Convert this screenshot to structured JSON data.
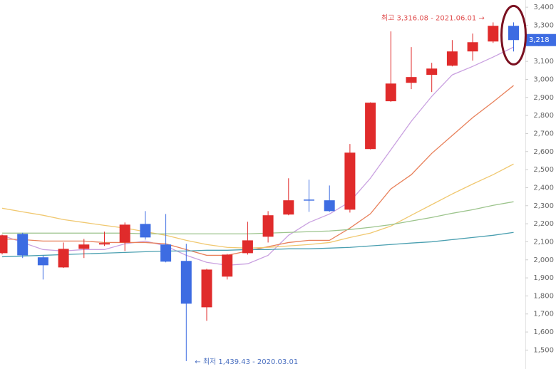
{
  "chart_data": {
    "type": "candlestick",
    "up_color": "#e02b2b",
    "down_color": "#3d6ce2",
    "open": [
      2037,
      2144,
      2014,
      1958,
      2061,
      2085,
      2096,
      2199,
      2085,
      1994,
      1737,
      1907,
      2037,
      2128,
      2251,
      2334,
      2330,
      2278,
      2614,
      2879,
      2981,
      3025,
      3076,
      3155,
      3210,
      3297
    ],
    "high": [
      2140,
      2150,
      2025,
      2096,
      2116,
      2156,
      2207,
      2270,
      2254,
      2089,
      1950,
      2033,
      2211,
      2270,
      2452,
      2444,
      2412,
      2642,
      2873,
      3266,
      3179,
      3092,
      3218,
      3254,
      3316,
      3316
    ],
    "low": [
      2030,
      2010,
      1891,
      1955,
      2010,
      2077,
      2049,
      2112,
      1986,
      1439,
      1662,
      1891,
      2029,
      2096,
      2247,
      2266,
      2266,
      2262,
      2612,
      2875,
      2946,
      2930,
      3072,
      3104,
      3202,
      3155
    ],
    "close": [
      2136,
      2025,
      1970,
      2061,
      2085,
      2093,
      2195,
      2124,
      1990,
      1757,
      1946,
      2029,
      2108,
      2247,
      2330,
      2330,
      2270,
      2594,
      2871,
      2977,
      3013,
      3060,
      3155,
      3206,
      3297,
      3218
    ],
    "ma_lines": [
      {
        "color": "#c9a0e0",
        "values": [
          2136,
          2096,
          2057,
          2049,
          2057,
          2057,
          2089,
          2104,
          2077,
          2025,
          1986,
          1970,
          1978,
          2025,
          2136,
          2207,
          2254,
          2322,
          2452,
          2610,
          2768,
          2906,
          3025,
          3072,
          3124,
          3179
        ]
      },
      {
        "color": "#e8805a",
        "values": [
          2116,
          2112,
          2104,
          2104,
          2104,
          2096,
          2096,
          2096,
          2089,
          2057,
          2025,
          2025,
          2049,
          2073,
          2096,
          2108,
          2108,
          2176,
          2255,
          2393,
          2472,
          2590,
          2689,
          2788,
          2875,
          2966
        ]
      },
      {
        "color": "#f0c870",
        "values": [
          2286,
          2266,
          2247,
          2223,
          2207,
          2191,
          2176,
          2156,
          2136,
          2108,
          2085,
          2069,
          2065,
          2069,
          2077,
          2085,
          2096,
          2124,
          2148,
          2187,
          2247,
          2306,
          2365,
          2420,
          2472,
          2531
        ]
      },
      {
        "color": "#9cc48c",
        "values": [
          2148,
          2148,
          2148,
          2148,
          2148,
          2148,
          2148,
          2144,
          2144,
          2144,
          2144,
          2144,
          2144,
          2148,
          2152,
          2156,
          2160,
          2168,
          2180,
          2195,
          2215,
          2235,
          2258,
          2278,
          2302,
          2322
        ]
      },
      {
        "color": "#4a9fb0",
        "values": [
          2017,
          2021,
          2025,
          2029,
          2033,
          2037,
          2041,
          2045,
          2049,
          2049,
          2053,
          2053,
          2057,
          2057,
          2061,
          2061,
          2065,
          2069,
          2077,
          2085,
          2093,
          2100,
          2112,
          2124,
          2136,
          2152
        ]
      }
    ],
    "ylim": [
      1395,
      3440
    ],
    "yticks": [
      {
        "value": 1500,
        "label": "1,500"
      },
      {
        "value": 1600,
        "label": "1,600"
      },
      {
        "value": 1700,
        "label": "1,700"
      },
      {
        "value": 1800,
        "label": "1,800"
      },
      {
        "value": 1900,
        "label": "1,900"
      },
      {
        "value": 2000,
        "label": "2,000"
      },
      {
        "value": 2100,
        "label": "2,100"
      },
      {
        "value": 2200,
        "label": "2,200"
      },
      {
        "value": 2300,
        "label": "2,300"
      },
      {
        "value": 2400,
        "label": "2,400"
      },
      {
        "value": 2500,
        "label": "2,500"
      },
      {
        "value": 2600,
        "label": "2,600"
      },
      {
        "value": 2700,
        "label": "2,700"
      },
      {
        "value": 2800,
        "label": "2,800"
      },
      {
        "value": 2900,
        "label": "2,900"
      },
      {
        "value": 3000,
        "label": "3,000"
      },
      {
        "value": 3100,
        "label": "3,100"
      },
      {
        "value": 3200,
        "label": "3,200"
      },
      {
        "value": 3300,
        "label": "3,300"
      },
      {
        "value": 3400,
        "label": "3,400"
      }
    ],
    "last_price": {
      "value": 3218,
      "label": "3,218"
    },
    "high_annotation": "최고 3,316.08 - 2021.06.01 →",
    "low_annotation": "← 최저 1,439.43 - 2020.03.01"
  }
}
